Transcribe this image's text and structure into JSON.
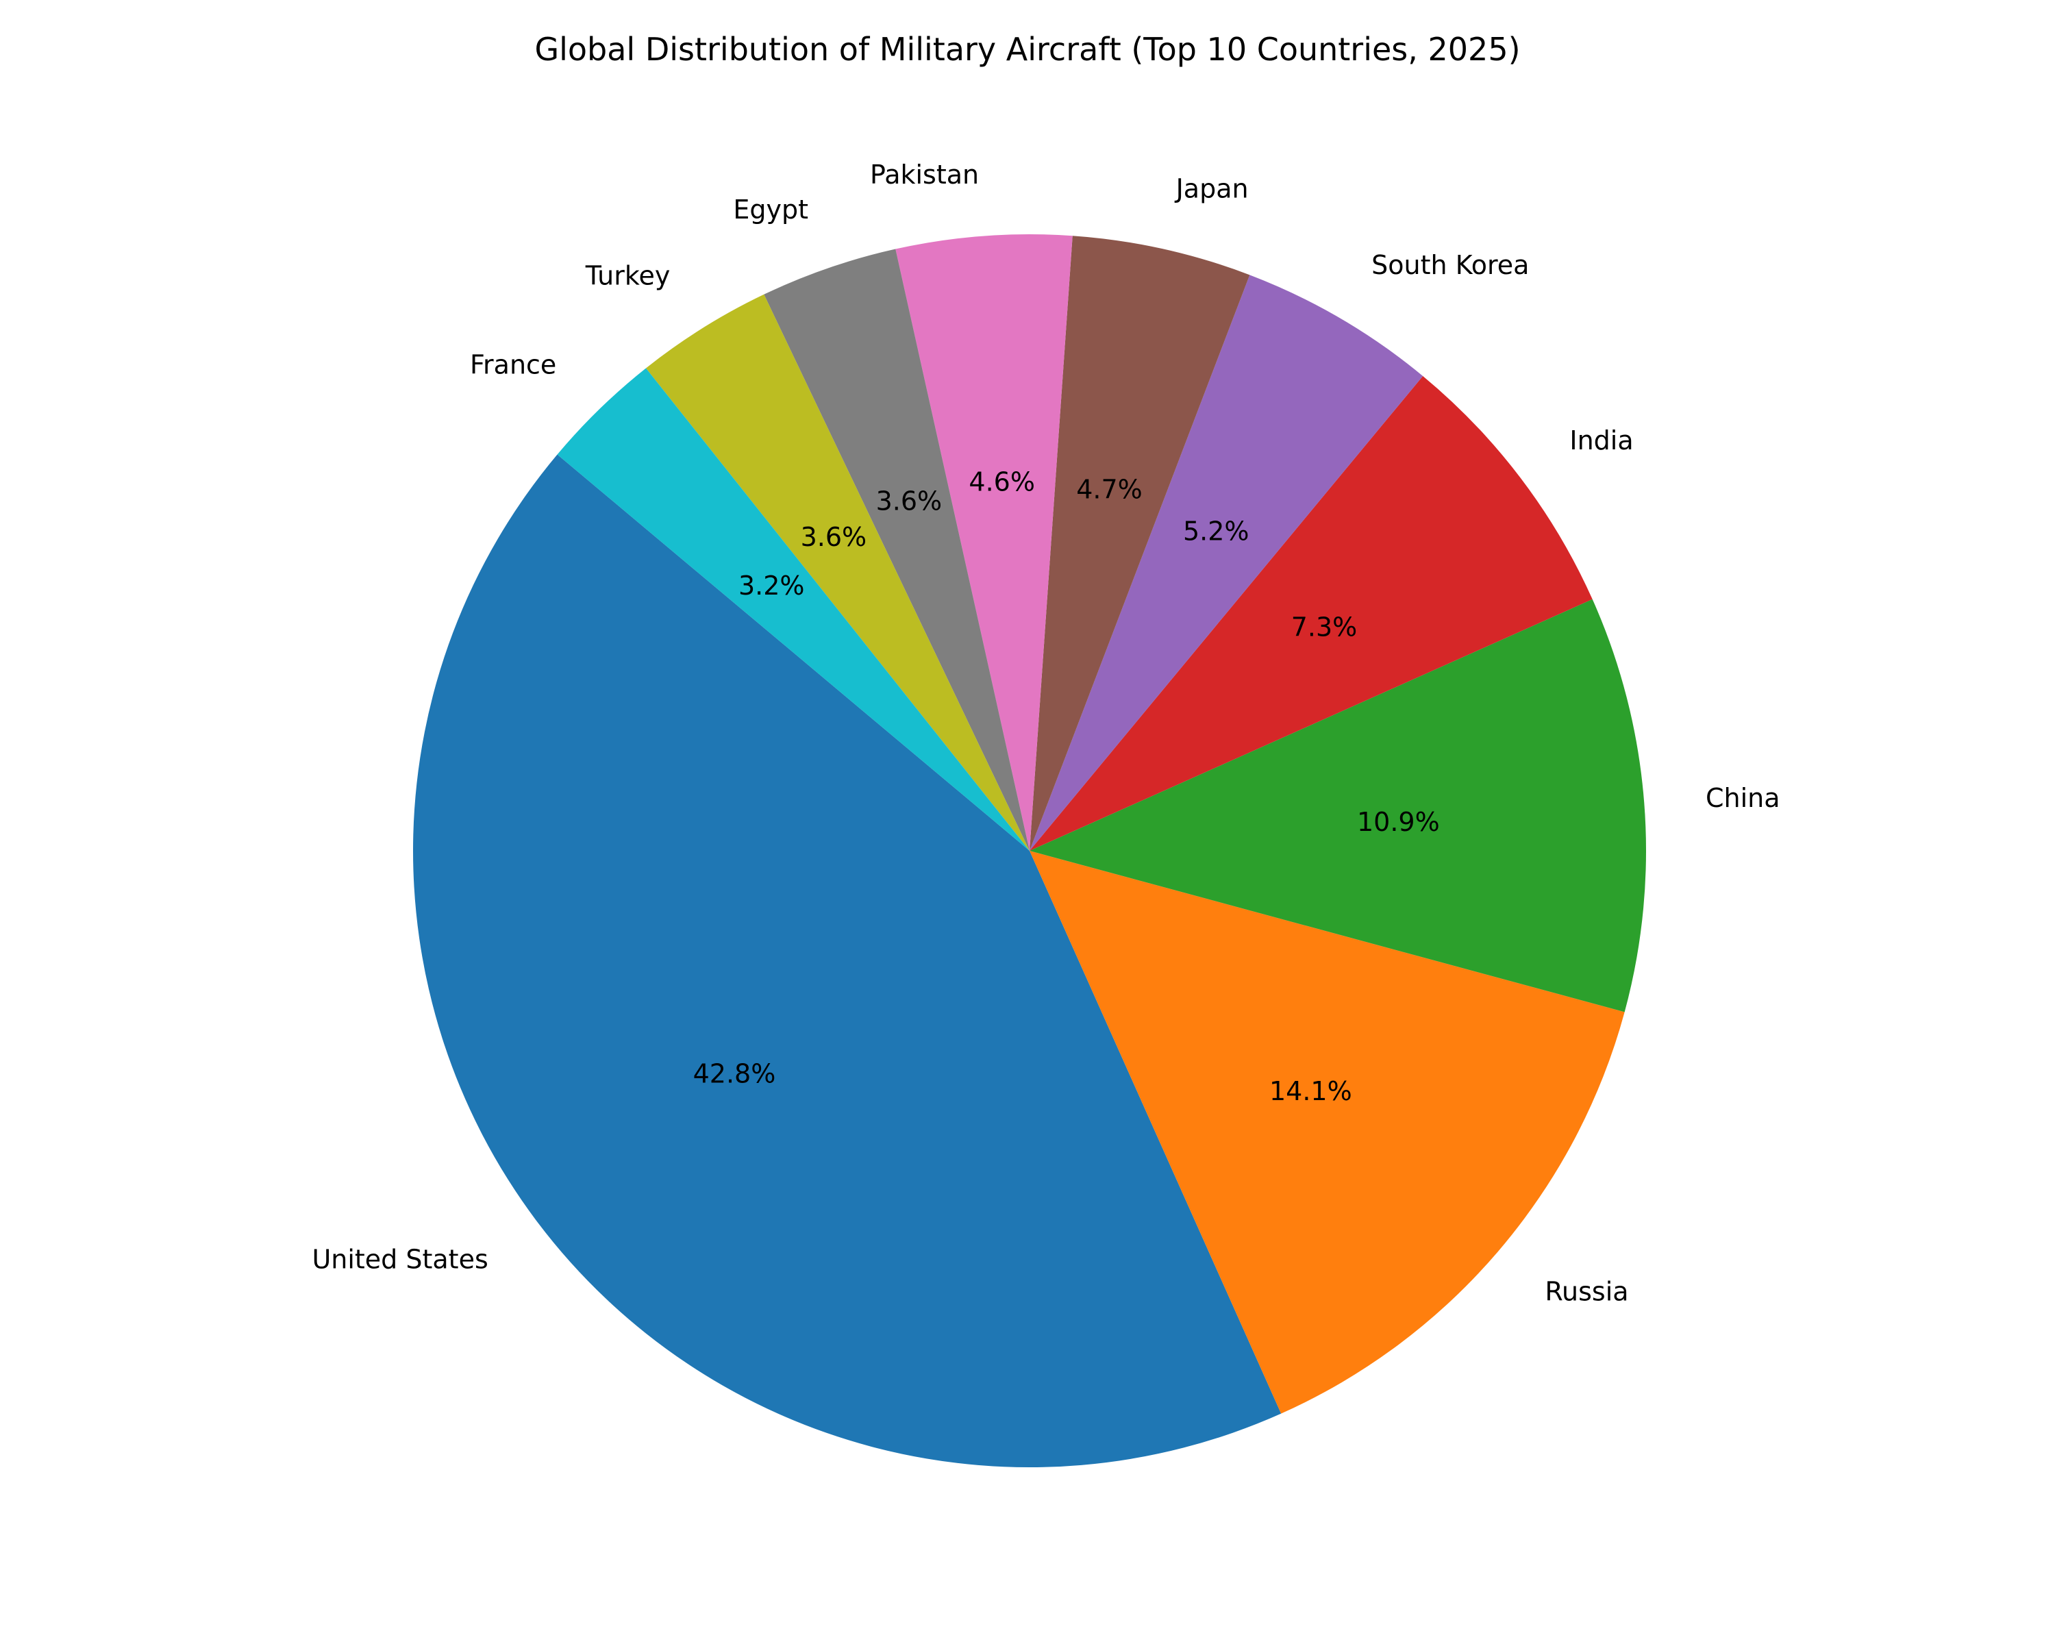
{
  "chart_data": {
    "type": "pie",
    "title": "Global Distribution of Military Aircraft (Top 10 Countries, 2025)",
    "categories": [
      "United States",
      "Russia",
      "China",
      "India",
      "South Korea",
      "Japan",
      "Pakistan",
      "Egypt",
      "Turkey",
      "France"
    ],
    "values": [
      42.8,
      14.1,
      10.9,
      7.3,
      5.2,
      4.7,
      4.6,
      3.6,
      3.6,
      3.2
    ],
    "value_labels": [
      "42.8%",
      "14.1%",
      "10.9%",
      "7.3%",
      "5.2%",
      "4.7%",
      "4.6%",
      "3.6%",
      "3.6%",
      "3.2%"
    ],
    "colors": [
      "#1f77b4",
      "#ff7f0e",
      "#2ca02c",
      "#d62728",
      "#9467bd",
      "#8c564b",
      "#e377c2",
      "#7f7f7f",
      "#bcbd22",
      "#17becf"
    ],
    "start_angle_deg": 140,
    "direction": "counterclockwise",
    "xlabel": "",
    "ylabel": ""
  }
}
